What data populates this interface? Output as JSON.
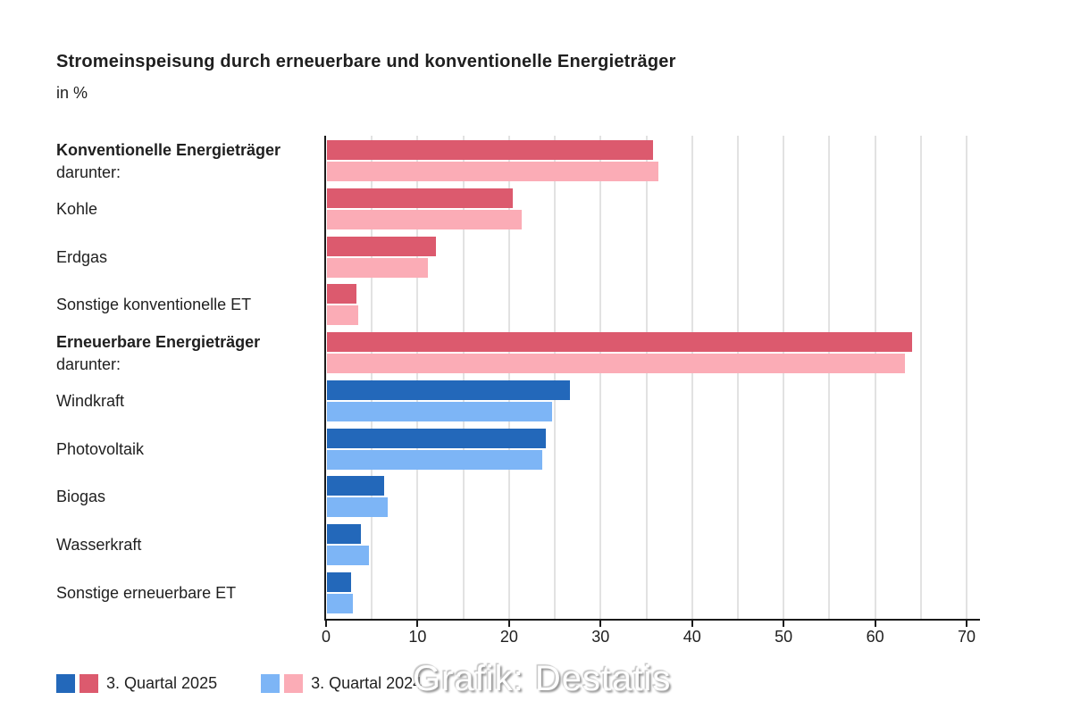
{
  "title": "Stromeinspeisung durch erneuerbare und konventionelle Energieträger",
  "subtitle": "in %",
  "watermark": "Grafik: Destatis",
  "colors": {
    "rose_dark": "#dc5a6e",
    "rose_light": "#fbacb6",
    "blue_dark": "#2368ba",
    "blue_light": "#7db5f6",
    "axis": "#1a1a1a",
    "grid": "#e2e2e2",
    "text": "#1f1f1f"
  },
  "legend": [
    {
      "label": "3. Quartal 2025",
      "swatches": [
        "blue_dark",
        "rose_dark"
      ]
    },
    {
      "label": "3. Quartal 2024",
      "swatches": [
        "blue_light",
        "rose_light"
      ]
    }
  ],
  "chart_data": {
    "type": "bar",
    "orientation": "horizontal",
    "title": "Stromeinspeisung durch erneuerbare und konventionelle Energieträger",
    "unit": "%",
    "xlim": [
      0,
      70
    ],
    "xticks": [
      0,
      10,
      20,
      30,
      40,
      50,
      60,
      70
    ],
    "gridline_step": 5,
    "grid": true,
    "legend_position": "bottom",
    "series_names": [
      "3. Quartal 2025",
      "3. Quartal 2024"
    ],
    "rows": [
      {
        "label": "Konventionelle Energieträger",
        "sublabel": "darunter:",
        "bold": true,
        "palette": "rose",
        "values": [
          35.6,
          36.2
        ]
      },
      {
        "label": "Kohle",
        "bold": false,
        "palette": "rose",
        "values": [
          20.3,
          21.3
        ]
      },
      {
        "label": "Erdgas",
        "bold": false,
        "palette": "rose",
        "values": [
          11.9,
          11.0
        ]
      },
      {
        "label": "Sonstige konventionelle ET",
        "bold": false,
        "palette": "rose",
        "values": [
          3.2,
          3.4
        ]
      },
      {
        "label": "Erneuerbare Energieträger",
        "sublabel": "darunter:",
        "bold": true,
        "palette": "rose",
        "values": [
          63.9,
          63.2
        ]
      },
      {
        "label": "Windkraft",
        "bold": false,
        "palette": "blue",
        "values": [
          26.6,
          24.6
        ]
      },
      {
        "label": "Photovoltaik",
        "bold": false,
        "palette": "blue",
        "values": [
          23.9,
          23.5
        ]
      },
      {
        "label": "Biogas",
        "bold": false,
        "palette": "blue",
        "values": [
          6.2,
          6.6
        ]
      },
      {
        "label": "Wasserkraft",
        "bold": false,
        "palette": "blue",
        "values": [
          3.7,
          4.6
        ]
      },
      {
        "label": "Sonstige erneuerbare ET",
        "bold": false,
        "palette": "blue",
        "values": [
          2.6,
          2.8
        ]
      }
    ]
  }
}
